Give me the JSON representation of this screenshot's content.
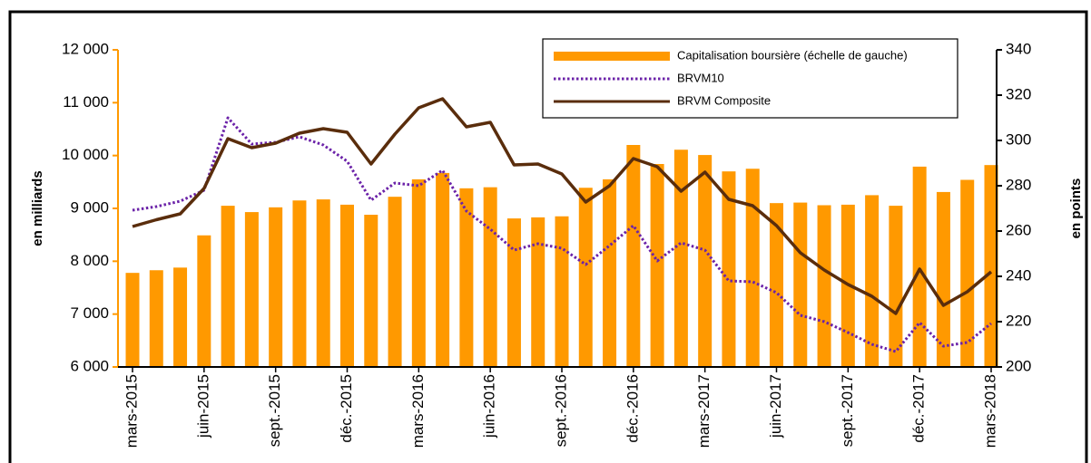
{
  "chart_data": {
    "type": "bar-line",
    "y_label": "en milliards",
    "y2_label": "en points",
    "categories": [
      "mars-2015",
      null,
      null,
      "juin-2015",
      null,
      null,
      "sept.-2015",
      null,
      null,
      "déc.-2015",
      null,
      null,
      "mars-2016",
      null,
      null,
      "juin-2016",
      null,
      null,
      "sept.-2016",
      null,
      null,
      "déc.-2016",
      null,
      null,
      "mars-2017",
      null,
      null,
      "juin-2017",
      null,
      null,
      "sept.-2017",
      null,
      null,
      "déc.-2017",
      null,
      null,
      "mars-2018"
    ],
    "series": [
      {
        "name": "Capitalisation boursière (échelle de gauche)",
        "type": "bar",
        "color": "#ff9900",
        "values": [
          7780,
          7830,
          7880,
          8490,
          9050,
          8930,
          9020,
          9150,
          9170,
          9070,
          8880,
          9220,
          9550,
          9670,
          9380,
          9400,
          8810,
          8830,
          8850,
          9390,
          9550,
          10200,
          9840,
          10110,
          10010,
          9700,
          9750,
          9100,
          9110,
          9060,
          9070,
          9250,
          9050,
          9790,
          9310,
          9540,
          9820
        ]
      },
      {
        "name": "BRVM10",
        "type": "line",
        "style": "dotted",
        "axis": "y2",
        "color": "#6b22a8",
        "values": [
          269.2,
          270.8,
          273.2,
          278,
          310,
          298.4,
          299.2,
          301.6,
          298,
          290.8,
          273.6,
          281.2,
          280,
          286.8,
          268.8,
          260.8,
          251.6,
          254.4,
          252.4,
          245.2,
          253.6,
          262.4,
          246.8,
          254.8,
          251.6,
          238,
          237.6,
          232.8,
          222.8,
          220,
          215.2,
          210,
          206.8,
          219.6,
          209.2,
          210.8,
          219.2
        ]
      },
      {
        "name": "BRVM Composite",
        "type": "line",
        "style": "solid",
        "axis": "y2",
        "color": "#5a2d0c",
        "values": [
          262,
          265,
          267.6,
          278.8,
          300.8,
          296.8,
          298.8,
          303.2,
          305.2,
          303.6,
          289.6,
          302.8,
          314.4,
          318.4,
          306,
          308,
          289.2,
          289.6,
          285.2,
          272.8,
          280,
          292,
          288.4,
          277.6,
          286,
          274,
          271.2,
          262.4,
          250.4,
          242.8,
          236.4,
          231.2,
          223.6,
          243.2,
          227.2,
          233.2,
          242
        ]
      }
    ],
    "ylim": [
      6000,
      12000
    ],
    "yticks": [
      {
        "value": 6000,
        "label": "6 000"
      },
      {
        "value": 7000,
        "label": "7 000"
      },
      {
        "value": 8000,
        "label": "8 000"
      },
      {
        "value": 9000,
        "label": "9 000"
      },
      {
        "value": 10000,
        "label": "10 000"
      },
      {
        "value": 11000,
        "label": "11 000"
      },
      {
        "value": 12000,
        "label": "12 000"
      }
    ],
    "y2lim": [
      200,
      340
    ],
    "y2ticks": [
      200,
      220,
      240,
      260,
      280,
      300,
      320,
      340
    ],
    "legend": "upper right"
  }
}
